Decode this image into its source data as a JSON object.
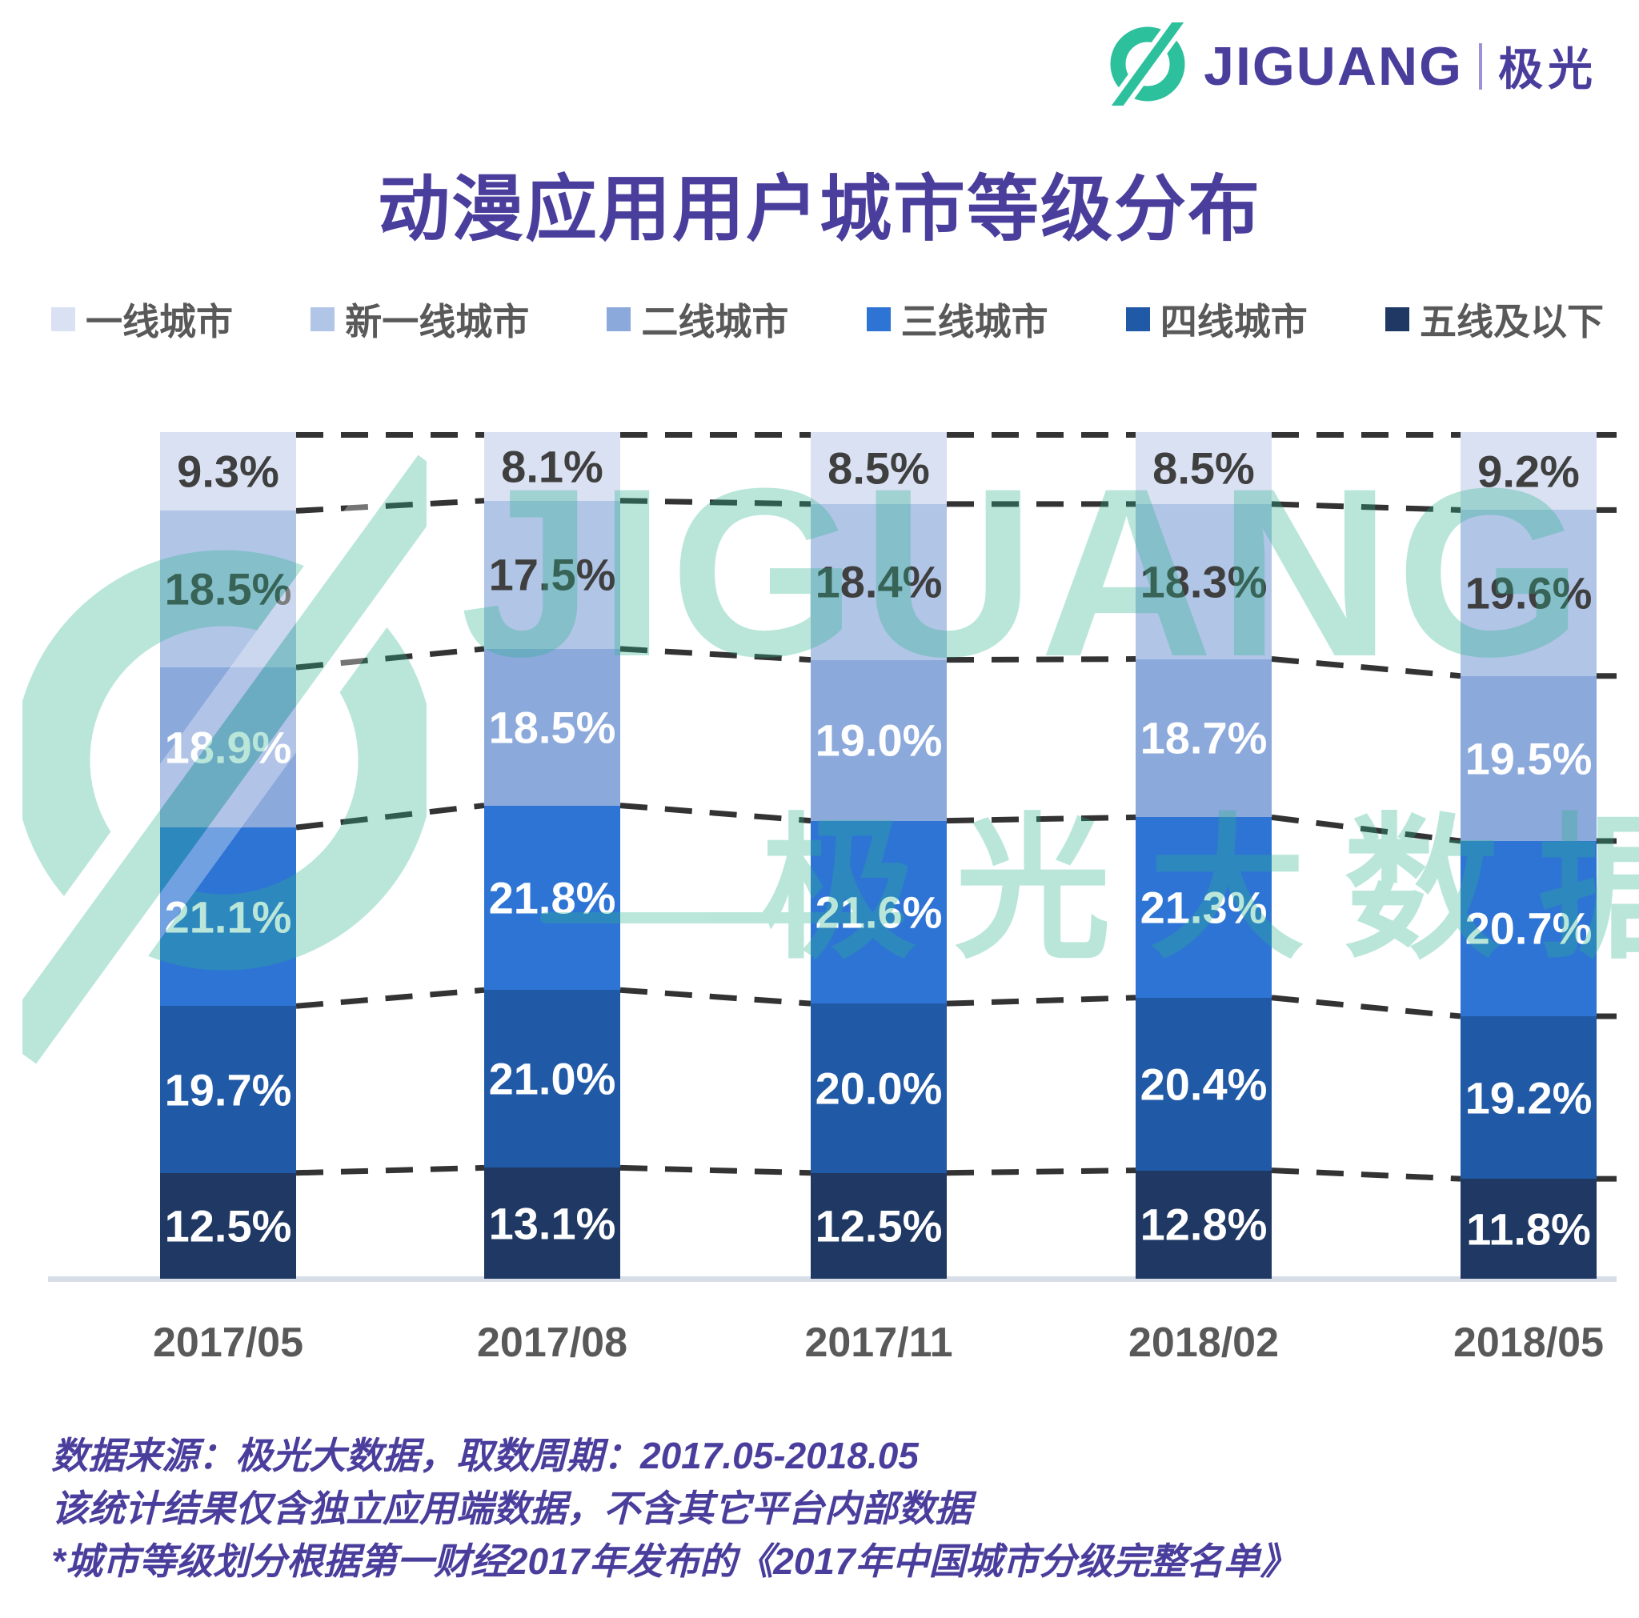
{
  "logo": {
    "brand": "JIGUANG",
    "brand_cn": "极光"
  },
  "chart_data": {
    "type": "bar",
    "subtype": "stacked-percentage-column",
    "title": "动漫应用用户城市等级分布",
    "categories": [
      "2017/05",
      "2017/08",
      "2017/11",
      "2018/02",
      "2018/05"
    ],
    "series": [
      {
        "name": "一线城市",
        "color": "#D9E1F2",
        "label_color": "#3F3F3F",
        "values": [
          9.3,
          8.1,
          8.5,
          8.5,
          9.2
        ]
      },
      {
        "name": "新一线城市",
        "color": "#B1C5E7",
        "label_color": "#3F3F3F",
        "values": [
          18.5,
          17.5,
          18.4,
          18.3,
          19.6
        ]
      },
      {
        "name": "二线城市",
        "color": "#8CA9DC",
        "label_color": "#FFFFFF",
        "values": [
          18.9,
          18.5,
          19.0,
          18.7,
          19.5
        ]
      },
      {
        "name": "三线城市",
        "color": "#2E74D4",
        "label_color": "#FFFFFF",
        "values": [
          21.1,
          21.8,
          21.6,
          21.3,
          20.7
        ]
      },
      {
        "name": "四线城市",
        "color": "#2059A6",
        "label_color": "#FFFFFF",
        "values": [
          19.7,
          21.0,
          20.0,
          20.4,
          19.2
        ]
      },
      {
        "name": "五线及以下",
        "color": "#1F3864",
        "label_color": "#FFFFFF",
        "values": [
          12.5,
          13.1,
          12.5,
          12.8,
          11.8
        ]
      }
    ],
    "value_suffix": "%",
    "ylim": [
      0,
      100
    ],
    "legend_position": "top",
    "grid": "dashed-connector-lines-between-bars",
    "connector_color": "#333333",
    "baseline_color": "#D8DEE8"
  },
  "watermark": {
    "text_en": "JIGUANG",
    "text_cn": "极光大数据",
    "color": "#2CB48E"
  },
  "footer": {
    "lines": [
      "数据来源：极光大数据，取数周期：2017.05-2018.05",
      "该统计结果仅含独立应用端数据，不含其它平台内部数据",
      "*城市等级划分根据第一财经2017年发布的《2017年中国城市分级完整名单》"
    ]
  }
}
